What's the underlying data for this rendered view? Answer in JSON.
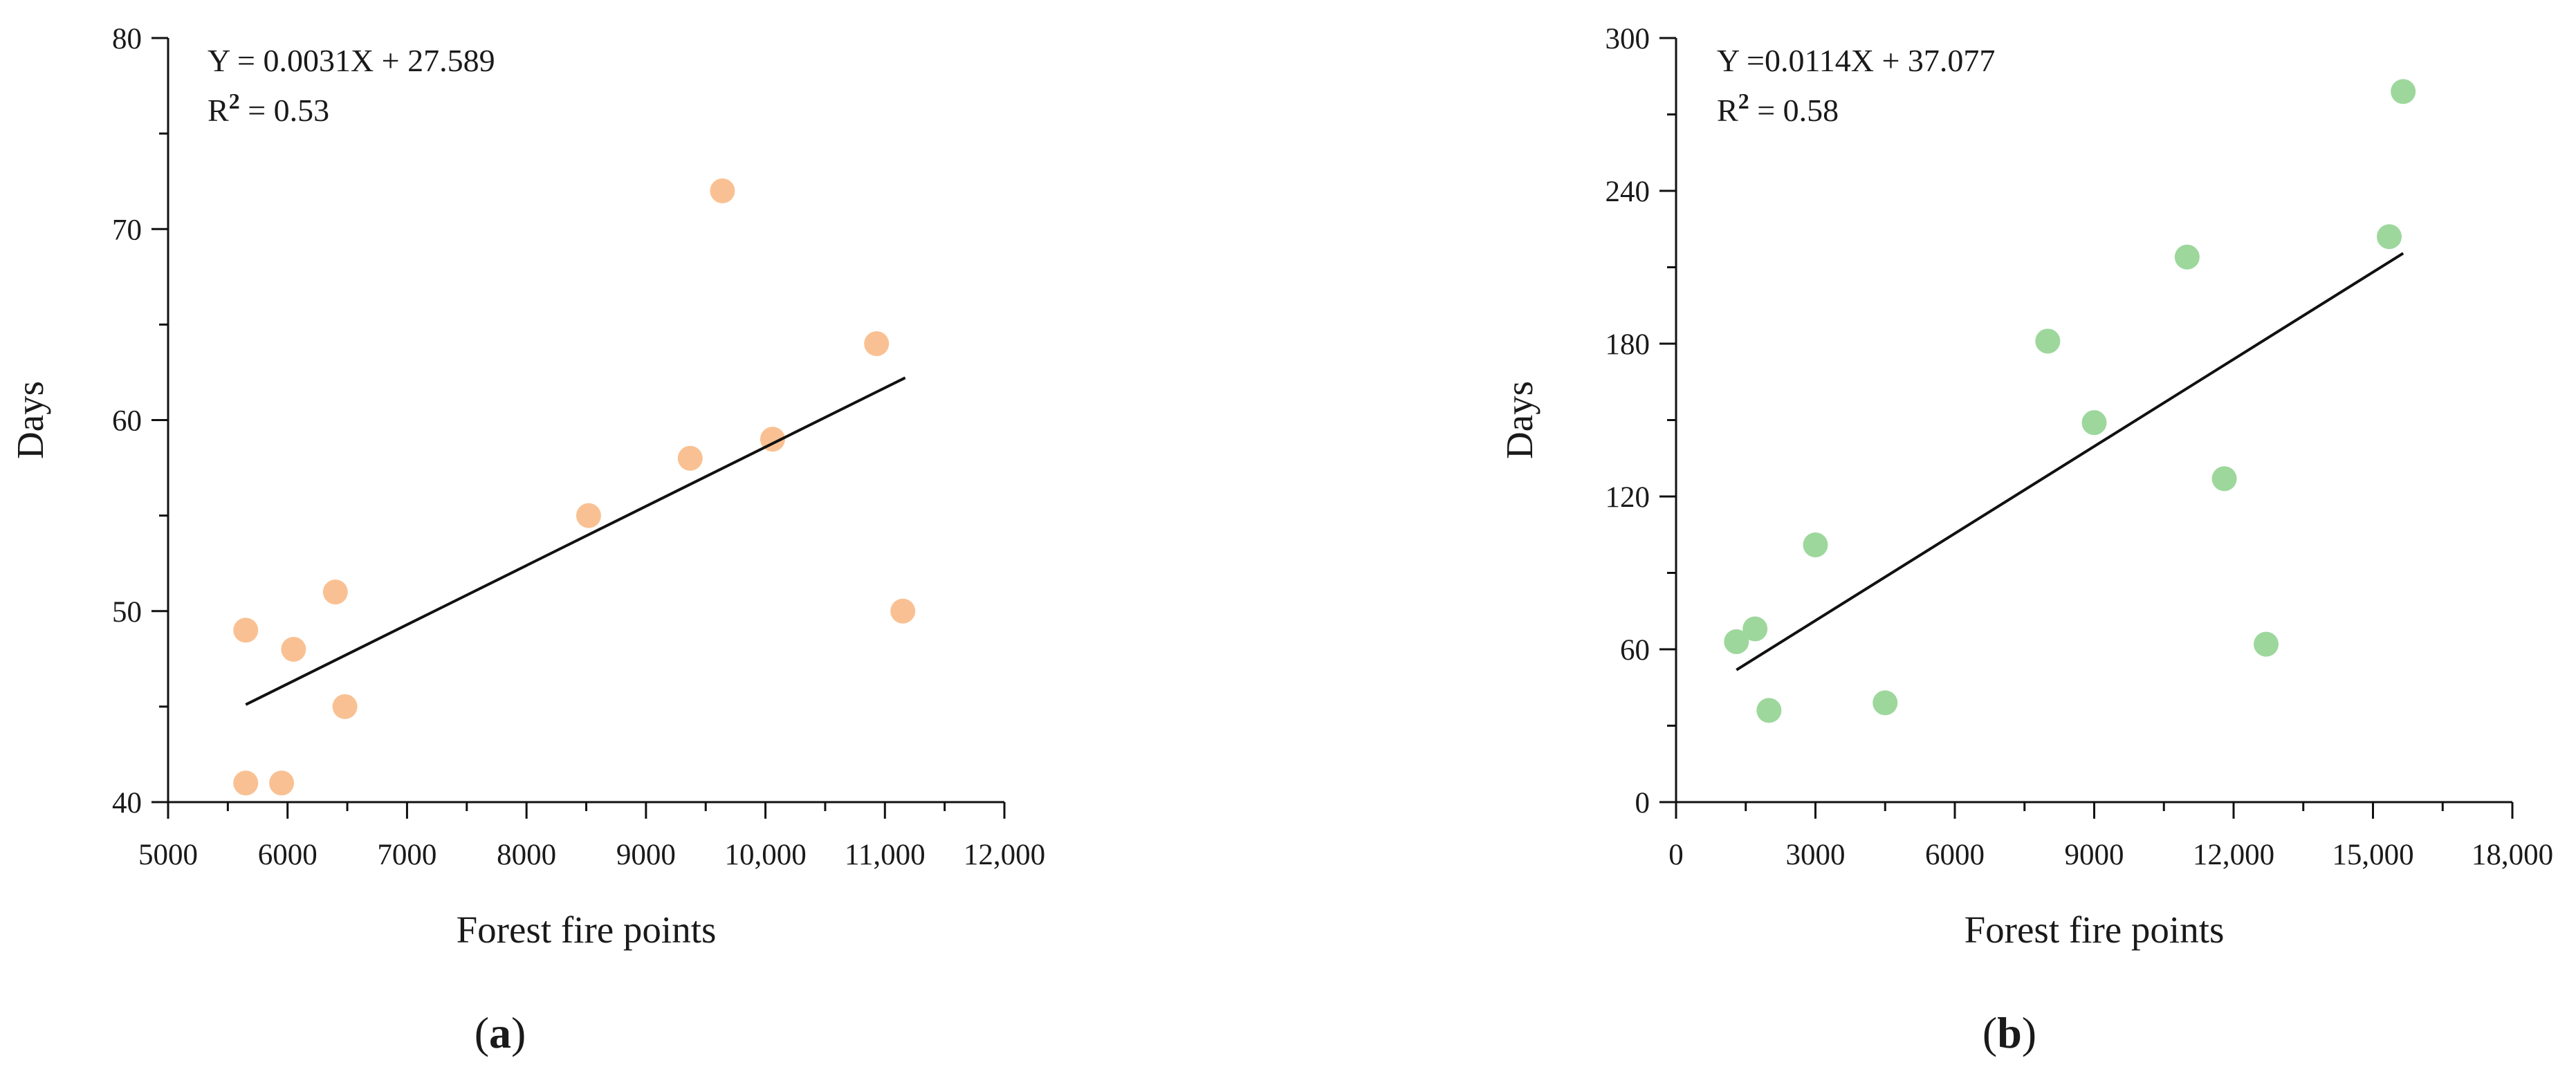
{
  "chart_data": [
    {
      "panel_label": "a",
      "type": "scatter",
      "xlabel": "Forest  fire points",
      "ylabel": "Days",
      "xlim": [
        5000,
        12000
      ],
      "ylim": [
        40,
        80
      ],
      "x_ticks": [
        5000,
        6000,
        7000,
        8000,
        9000,
        10000,
        11000,
        12000
      ],
      "x_tick_labels": [
        "5000",
        "6000",
        "7000",
        "8000",
        "9000",
        "10,000",
        "11,000",
        "12,000"
      ],
      "y_ticks": [
        40,
        50,
        60,
        70,
        80
      ],
      "y_tick_labels": [
        "40",
        "50",
        "60",
        "70",
        "80"
      ],
      "equation": "Y = 0.0031X + 27.589",
      "r2_label": "R",
      "r2_sup": "2",
      "r2_value": " = 0.53",
      "regression": {
        "slope": 0.0031,
        "intercept": 27.589,
        "x_range": [
          5650,
          11170
        ]
      },
      "marker_color": "#f9c193",
      "points": [
        {
          "x": 5650,
          "y": 49
        },
        {
          "x": 5650,
          "y": 41
        },
        {
          "x": 5950,
          "y": 41
        },
        {
          "x": 6050,
          "y": 48
        },
        {
          "x": 6400,
          "y": 51
        },
        {
          "x": 6480,
          "y": 45
        },
        {
          "x": 8520,
          "y": 55
        },
        {
          "x": 9370,
          "y": 58
        },
        {
          "x": 9640,
          "y": 72
        },
        {
          "x": 10060,
          "y": 59
        },
        {
          "x": 10930,
          "y": 64
        },
        {
          "x": 11150,
          "y": 50
        }
      ]
    },
    {
      "panel_label": "b",
      "type": "scatter",
      "xlabel": "Forest  fire points",
      "ylabel": "Days",
      "xlim": [
        0,
        18000
      ],
      "ylim": [
        0,
        300
      ],
      "x_ticks": [
        0,
        3000,
        6000,
        9000,
        12000,
        15000,
        18000
      ],
      "x_tick_labels": [
        "0",
        "3000",
        "6000",
        "9000",
        "12,000",
        "15,000",
        "18,000"
      ],
      "y_ticks": [
        0,
        60,
        120,
        180,
        240,
        300
      ],
      "y_tick_labels": [
        "0",
        "60",
        "120",
        "180",
        "240",
        "300"
      ],
      "equation": "Y =0.0114X + 37.077",
      "r2_label": "R",
      "r2_sup": "2",
      "r2_value": " = 0.58",
      "regression": {
        "slope": 0.0114,
        "intercept": 37.077,
        "x_range": [
          1300,
          15650
        ]
      },
      "marker_color": "#9dd79c",
      "points": [
        {
          "x": 1300,
          "y": 63
        },
        {
          "x": 1700,
          "y": 68
        },
        {
          "x": 2000,
          "y": 36
        },
        {
          "x": 3000,
          "y": 101
        },
        {
          "x": 4500,
          "y": 39
        },
        {
          "x": 8000,
          "y": 181
        },
        {
          "x": 9000,
          "y": 149
        },
        {
          "x": 11000,
          "y": 214
        },
        {
          "x": 11800,
          "y": 127
        },
        {
          "x": 12700,
          "y": 62
        },
        {
          "x": 15350,
          "y": 222
        },
        {
          "x": 15650,
          "y": 279
        }
      ]
    }
  ]
}
